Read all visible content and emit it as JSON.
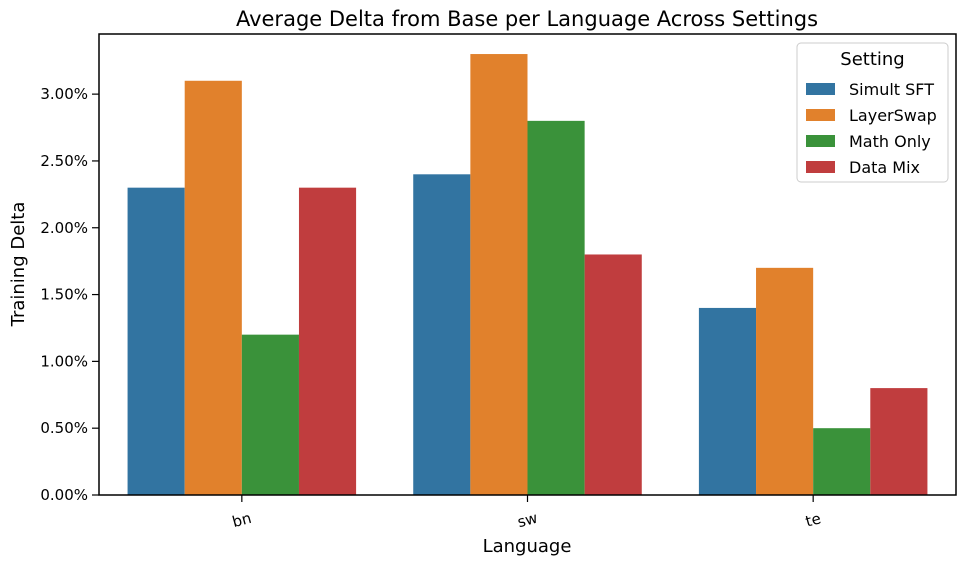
{
  "chart_data": {
    "type": "bar",
    "title": "Average Delta from Base per Language Across Settings",
    "xlabel": "Language",
    "ylabel": "Training Delta",
    "categories": [
      "bn",
      "sw",
      "te"
    ],
    "series": [
      {
        "name": "Simult SFT",
        "values": [
          0.023,
          0.024,
          0.014
        ],
        "color": "#3274a1"
      },
      {
        "name": "LayerSwap",
        "values": [
          0.031,
          0.033,
          0.017
        ],
        "color": "#e1812c"
      },
      {
        "name": "Math Only",
        "values": [
          0.012,
          0.028,
          0.005
        ],
        "color": "#3a923a"
      },
      {
        "name": "Data Mix",
        "values": [
          0.023,
          0.018,
          0.008
        ],
        "color": "#c03d3e"
      }
    ],
    "ylim": [
      0,
      0.0345
    ],
    "yticks": [
      0,
      0.005,
      0.01,
      0.015,
      0.02,
      0.025,
      0.03
    ],
    "ytick_labels": [
      "0.00%",
      "0.50%",
      "1.00%",
      "1.50%",
      "2.00%",
      "2.50%",
      "3.00%"
    ],
    "legend": {
      "title": "Setting",
      "placement": "top-right"
    },
    "grid": false
  }
}
